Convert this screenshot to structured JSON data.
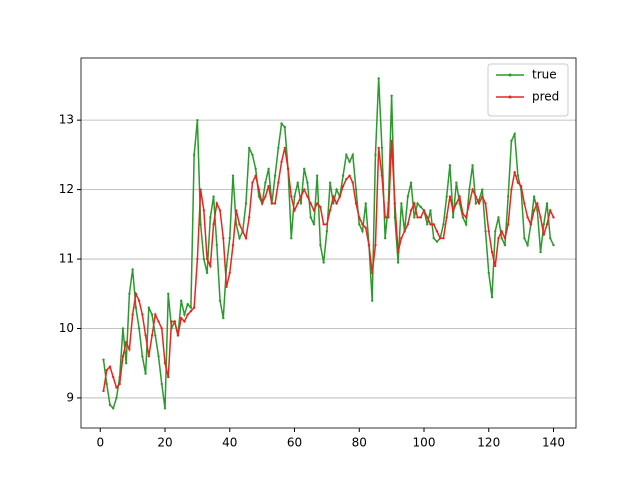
{
  "chart_data": {
    "type": "line",
    "x": [
      1,
      2,
      3,
      4,
      5,
      6,
      7,
      8,
      9,
      10,
      11,
      12,
      13,
      14,
      15,
      16,
      17,
      18,
      19,
      20,
      21,
      22,
      23,
      24,
      25,
      26,
      27,
      28,
      29,
      30,
      31,
      32,
      33,
      34,
      35,
      36,
      37,
      38,
      39,
      40,
      41,
      42,
      43,
      44,
      45,
      46,
      47,
      48,
      49,
      50,
      51,
      52,
      53,
      54,
      55,
      56,
      57,
      58,
      59,
      60,
      61,
      62,
      63,
      64,
      65,
      66,
      67,
      68,
      69,
      70,
      71,
      72,
      73,
      74,
      75,
      76,
      77,
      78,
      79,
      80,
      81,
      82,
      83,
      84,
      85,
      86,
      87,
      88,
      89,
      90,
      91,
      92,
      93,
      94,
      95,
      96,
      97,
      98,
      99,
      100,
      101,
      102,
      103,
      104,
      105,
      106,
      107,
      108,
      109,
      110,
      111,
      112,
      113,
      114,
      115,
      116,
      117,
      118,
      119,
      120,
      121,
      122,
      123,
      124,
      125,
      126,
      127,
      128,
      129,
      130,
      131,
      132,
      133,
      134,
      135,
      136,
      137,
      138,
      139,
      140
    ],
    "series": [
      {
        "name": "true",
        "color": "#2a9a2a",
        "values": [
          9.55,
          9.2,
          8.9,
          8.85,
          9.0,
          9.3,
          10.0,
          9.5,
          10.5,
          10.85,
          10.3,
          10.0,
          9.6,
          9.35,
          10.3,
          10.2,
          9.9,
          9.6,
          9.2,
          8.85,
          10.5,
          10.0,
          10.1,
          9.9,
          10.4,
          10.2,
          10.35,
          10.3,
          12.5,
          13.0,
          11.5,
          11.0,
          10.8,
          11.6,
          11.9,
          11.2,
          10.4,
          10.15,
          10.9,
          11.3,
          12.2,
          11.5,
          11.3,
          11.4,
          11.8,
          12.6,
          12.5,
          12.3,
          11.9,
          11.8,
          12.1,
          12.3,
          11.8,
          12.2,
          12.6,
          12.95,
          12.9,
          12.3,
          11.3,
          11.9,
          12.1,
          11.8,
          12.3,
          12.1,
          11.6,
          11.5,
          12.2,
          11.2,
          10.95,
          11.4,
          12.1,
          11.8,
          12.0,
          11.9,
          12.2,
          12.5,
          12.4,
          12.5,
          12.0,
          11.5,
          11.4,
          11.8,
          11.2,
          10.4,
          12.5,
          13.6,
          12.6,
          11.3,
          11.8,
          13.35,
          11.6,
          10.95,
          11.8,
          11.4,
          11.9,
          12.1,
          11.6,
          11.8,
          11.75,
          11.7,
          11.5,
          11.7,
          11.3,
          11.25,
          11.3,
          11.5,
          11.9,
          12.35,
          11.6,
          12.1,
          11.8,
          11.6,
          11.5,
          12.0,
          12.35,
          11.8,
          11.85,
          12.0,
          11.4,
          10.8,
          10.45,
          11.4,
          11.6,
          11.3,
          11.2,
          11.9,
          12.7,
          12.8,
          12.2,
          12.0,
          11.3,
          11.2,
          11.5,
          11.9,
          11.7,
          11.1,
          11.5,
          11.8,
          11.3,
          11.2
        ]
      },
      {
        "name": "pred",
        "color": "#e8261e",
        "values": [
          9.1,
          9.4,
          9.45,
          9.3,
          9.15,
          9.2,
          9.6,
          9.8,
          9.7,
          10.2,
          10.5,
          10.4,
          10.2,
          9.9,
          9.6,
          9.9,
          10.2,
          10.1,
          10.0,
          9.5,
          9.3,
          10.1,
          10.1,
          9.9,
          10.15,
          10.1,
          10.2,
          10.25,
          10.3,
          11.0,
          12.0,
          11.7,
          11.0,
          10.9,
          11.5,
          11.8,
          11.7,
          11.3,
          10.6,
          10.8,
          11.2,
          11.7,
          11.5,
          11.4,
          11.3,
          11.6,
          12.1,
          12.2,
          12.0,
          11.8,
          11.9,
          12.05,
          11.8,
          11.8,
          12.1,
          12.4,
          12.6,
          12.3,
          11.9,
          11.7,
          11.8,
          11.9,
          12.0,
          11.9,
          11.8,
          11.7,
          11.8,
          11.75,
          11.5,
          11.5,
          11.7,
          11.9,
          11.8,
          11.9,
          12.05,
          12.15,
          12.2,
          12.1,
          11.8,
          11.6,
          11.5,
          11.45,
          11.2,
          10.8,
          11.2,
          12.6,
          12.2,
          11.6,
          11.6,
          12.7,
          11.8,
          11.1,
          11.3,
          11.4,
          11.5,
          11.7,
          11.8,
          11.6,
          11.6,
          11.7,
          11.6,
          11.5,
          11.5,
          11.4,
          11.3,
          11.3,
          11.6,
          11.9,
          11.7,
          11.8,
          11.9,
          11.65,
          11.6,
          11.8,
          12.0,
          11.9,
          11.8,
          11.9,
          11.8,
          11.4,
          11.1,
          10.9,
          11.3,
          11.4,
          11.3,
          11.5,
          12.0,
          12.25,
          12.1,
          12.05,
          11.8,
          11.6,
          11.5,
          11.7,
          11.8,
          11.6,
          11.35,
          11.5,
          11.7,
          11.6
        ]
      }
    ],
    "xlim": [
      -5.95,
      146.95
    ],
    "xticks": [
      0,
      20,
      40,
      60,
      80,
      100,
      120,
      140
    ],
    "ylim": [
      8.567,
      13.895
    ],
    "yticks": [
      9,
      10,
      11,
      12,
      13
    ],
    "grid": "y",
    "legend": "upper right"
  }
}
